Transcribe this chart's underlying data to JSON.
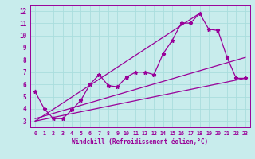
{
  "xlabel": "Windchill (Refroidissement éolien,°C)",
  "bg_color": "#c8ecec",
  "line_color": "#990099",
  "grid_color": "#aadddd",
  "xlim": [
    -0.5,
    23.5
  ],
  "ylim": [
    2.5,
    12.5
  ],
  "xticks": [
    0,
    1,
    2,
    3,
    4,
    5,
    6,
    7,
    8,
    9,
    10,
    11,
    12,
    13,
    14,
    15,
    16,
    17,
    18,
    19,
    20,
    21,
    22,
    23
  ],
  "yticks": [
    3,
    4,
    5,
    6,
    7,
    8,
    9,
    10,
    11,
    12
  ],
  "series1_x": [
    0,
    1,
    2,
    3,
    4,
    5,
    6,
    7,
    8,
    9,
    10,
    11,
    12,
    13,
    14,
    15,
    16,
    17,
    18,
    19,
    20,
    21,
    22,
    23
  ],
  "series1_y": [
    5.4,
    4.0,
    3.2,
    3.2,
    3.9,
    4.7,
    6.0,
    6.8,
    5.9,
    5.8,
    6.6,
    7.0,
    7.0,
    6.8,
    8.5,
    9.6,
    11.0,
    11.0,
    11.8,
    10.5,
    10.4,
    8.2,
    6.5,
    6.5
  ],
  "series2_x": [
    0,
    23
  ],
  "series2_y": [
    3.0,
    6.5
  ],
  "series3_x": [
    0,
    18
  ],
  "series3_y": [
    3.0,
    11.8
  ],
  "series4_x": [
    0,
    23
  ],
  "series4_y": [
    3.2,
    8.2
  ]
}
